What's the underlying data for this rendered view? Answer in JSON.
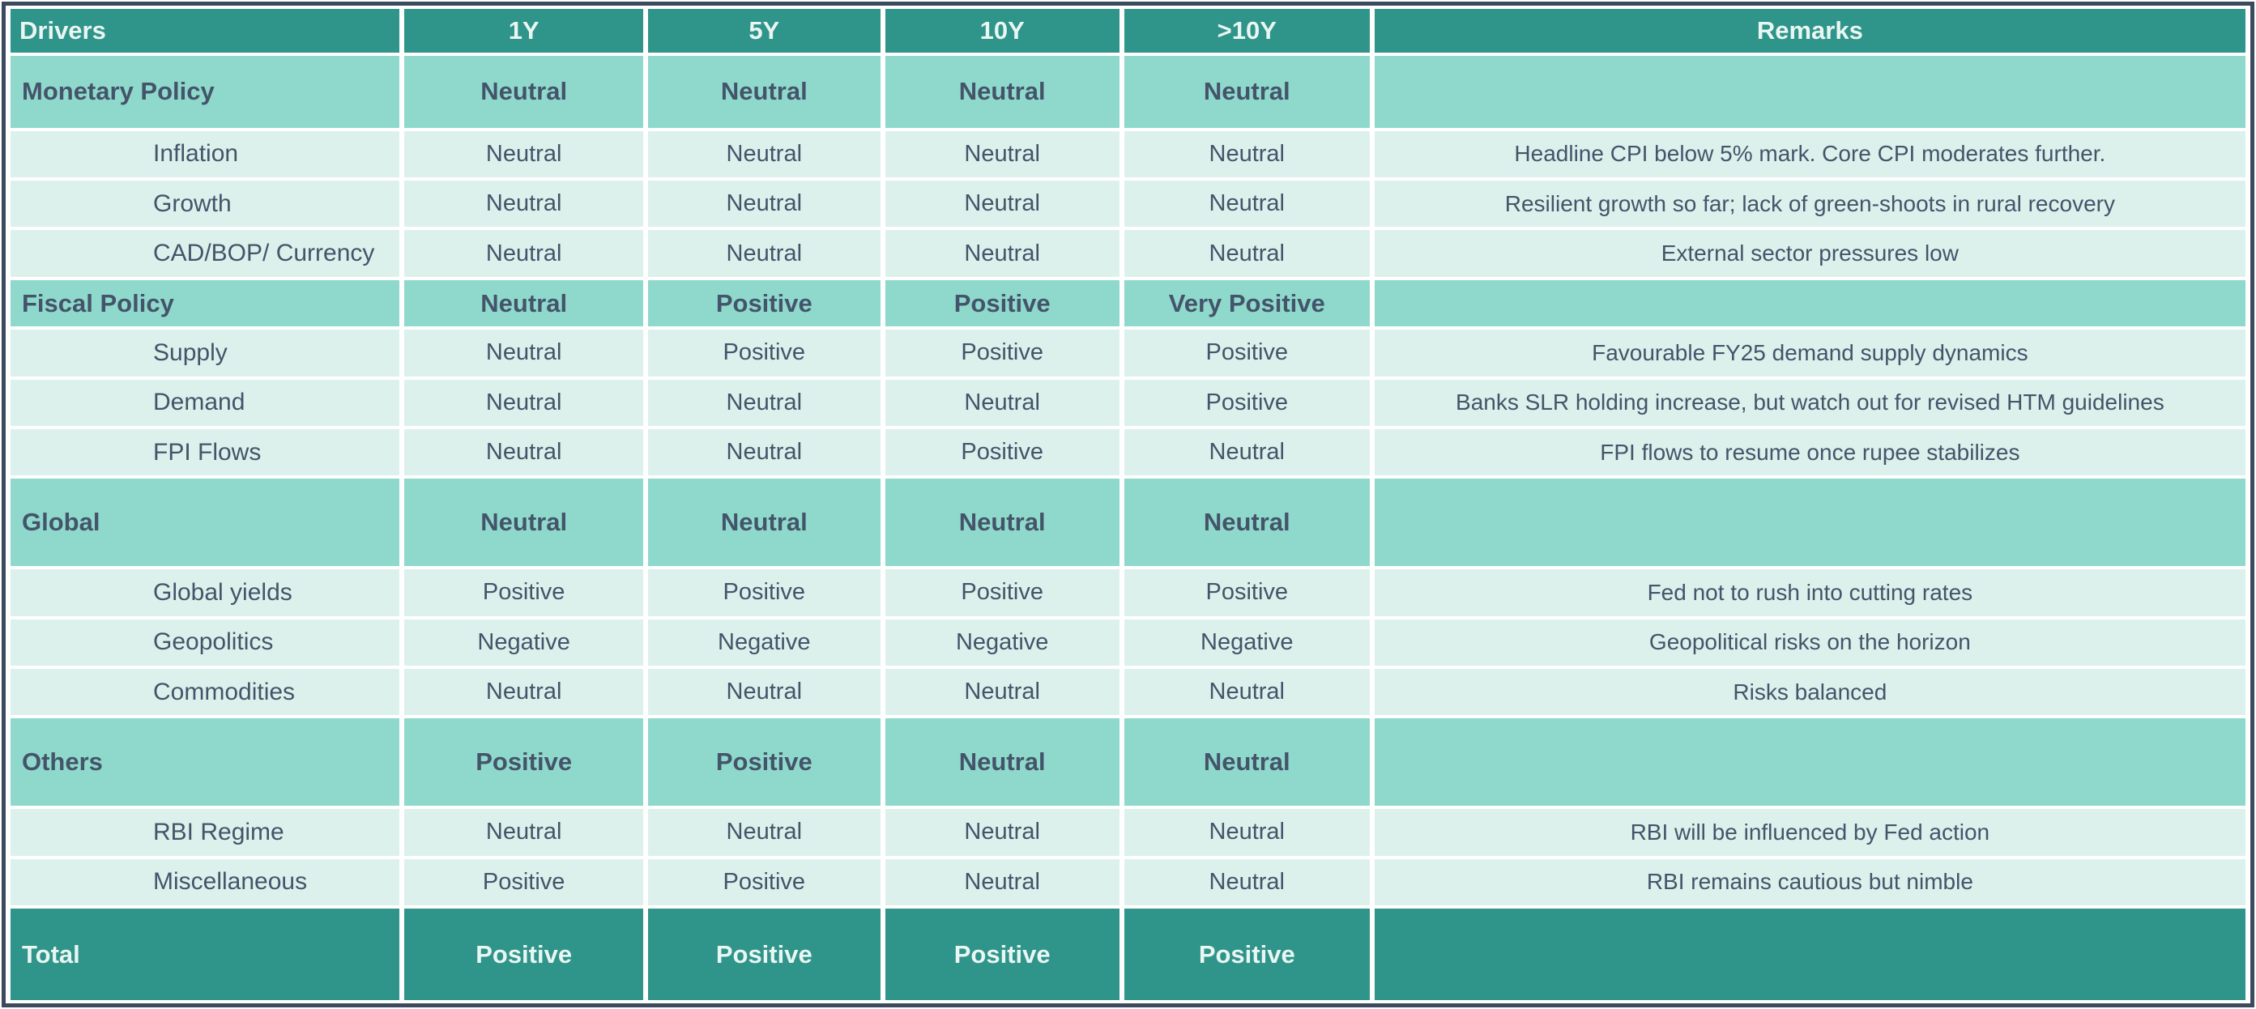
{
  "table": {
    "colors": {
      "header_bg": "#2F948A",
      "header_text": "#E9F6F2",
      "category_bg": "#8FD9CC",
      "detail_bg": "#DCF1EC",
      "text_dark": "#44546A",
      "total_bg": "#2F948A",
      "total_text": "#E9F6F2",
      "gridline": "#FFFFFF",
      "frame_border": "#3C4A5E"
    },
    "columns": [
      "Drivers",
      "1Y",
      "5Y",
      "10Y",
      ">10Y",
      "Remarks"
    ],
    "rows": [
      {
        "type": "category",
        "size": "tall",
        "driver": "Monetary Policy",
        "values": [
          "Neutral",
          "Neutral",
          "Neutral",
          "Neutral"
        ],
        "remark": ""
      },
      {
        "type": "detail",
        "size": "normal",
        "driver": "Inflation",
        "values": [
          "Neutral",
          "Neutral",
          "Neutral",
          "Neutral"
        ],
        "remark": "Headline CPI below 5% mark. Core CPI moderates further."
      },
      {
        "type": "detail",
        "size": "normal",
        "driver": "Growth",
        "values": [
          "Neutral",
          "Neutral",
          "Neutral",
          "Neutral"
        ],
        "remark": "Resilient growth so far; lack of green-shoots in rural recovery"
      },
      {
        "type": "detail",
        "size": "normal",
        "driver": "CAD/BOP/ Currency",
        "values": [
          "Neutral",
          "Neutral",
          "Neutral",
          "Neutral"
        ],
        "remark": "External sector pressures low"
      },
      {
        "type": "category",
        "size": "normal",
        "driver": "Fiscal Policy",
        "values": [
          "Neutral",
          "Positive",
          "Positive",
          "Very Positive"
        ],
        "remark": ""
      },
      {
        "type": "detail",
        "size": "normal",
        "driver": "Supply",
        "values": [
          "Neutral",
          "Positive",
          "Positive",
          "Positive"
        ],
        "remark": "Favourable FY25 demand supply dynamics"
      },
      {
        "type": "detail",
        "size": "normal",
        "driver": "Demand",
        "values": [
          "Neutral",
          "Neutral",
          "Neutral",
          "Positive"
        ],
        "remark": "Banks SLR holding increase, but watch out for revised HTM guidelines"
      },
      {
        "type": "detail",
        "size": "normal",
        "driver": "FPI Flows",
        "values": [
          "Neutral",
          "Neutral",
          "Positive",
          "Neutral"
        ],
        "remark": "FPI flows to resume once rupee stabilizes"
      },
      {
        "type": "category",
        "size": "xl",
        "driver": "Global",
        "values": [
          "Neutral",
          "Neutral",
          "Neutral",
          "Neutral"
        ],
        "remark": ""
      },
      {
        "type": "detail",
        "size": "normal",
        "driver": "Global yields",
        "values": [
          "Positive",
          "Positive",
          "Positive",
          "Positive"
        ],
        "remark": "Fed not to rush into cutting rates"
      },
      {
        "type": "detail",
        "size": "normal",
        "driver": "Geopolitics",
        "values": [
          "Negative",
          "Negative",
          "Negative",
          "Negative"
        ],
        "remark": "Geopolitical risks on the horizon"
      },
      {
        "type": "detail",
        "size": "normal",
        "driver": "Commodities",
        "values": [
          "Neutral",
          "Neutral",
          "Neutral",
          "Neutral"
        ],
        "remark": "Risks balanced"
      },
      {
        "type": "category",
        "size": "xl",
        "driver": "Others",
        "values": [
          "Positive",
          "Positive",
          "Neutral",
          "Neutral"
        ],
        "remark": ""
      },
      {
        "type": "detail",
        "size": "normal",
        "driver": "RBI Regime",
        "values": [
          "Neutral",
          "Neutral",
          "Neutral",
          "Neutral"
        ],
        "remark": "RBI will be influenced by Fed action"
      },
      {
        "type": "detail",
        "size": "normal",
        "driver": "Miscellaneous",
        "values": [
          "Positive",
          "Positive",
          "Neutral",
          "Neutral"
        ],
        "remark": "RBI remains cautious but nimble"
      },
      {
        "type": "total",
        "size": "total",
        "driver": "Total",
        "values": [
          "Positive",
          "Positive",
          "Positive",
          "Positive"
        ],
        "remark": ""
      }
    ]
  }
}
